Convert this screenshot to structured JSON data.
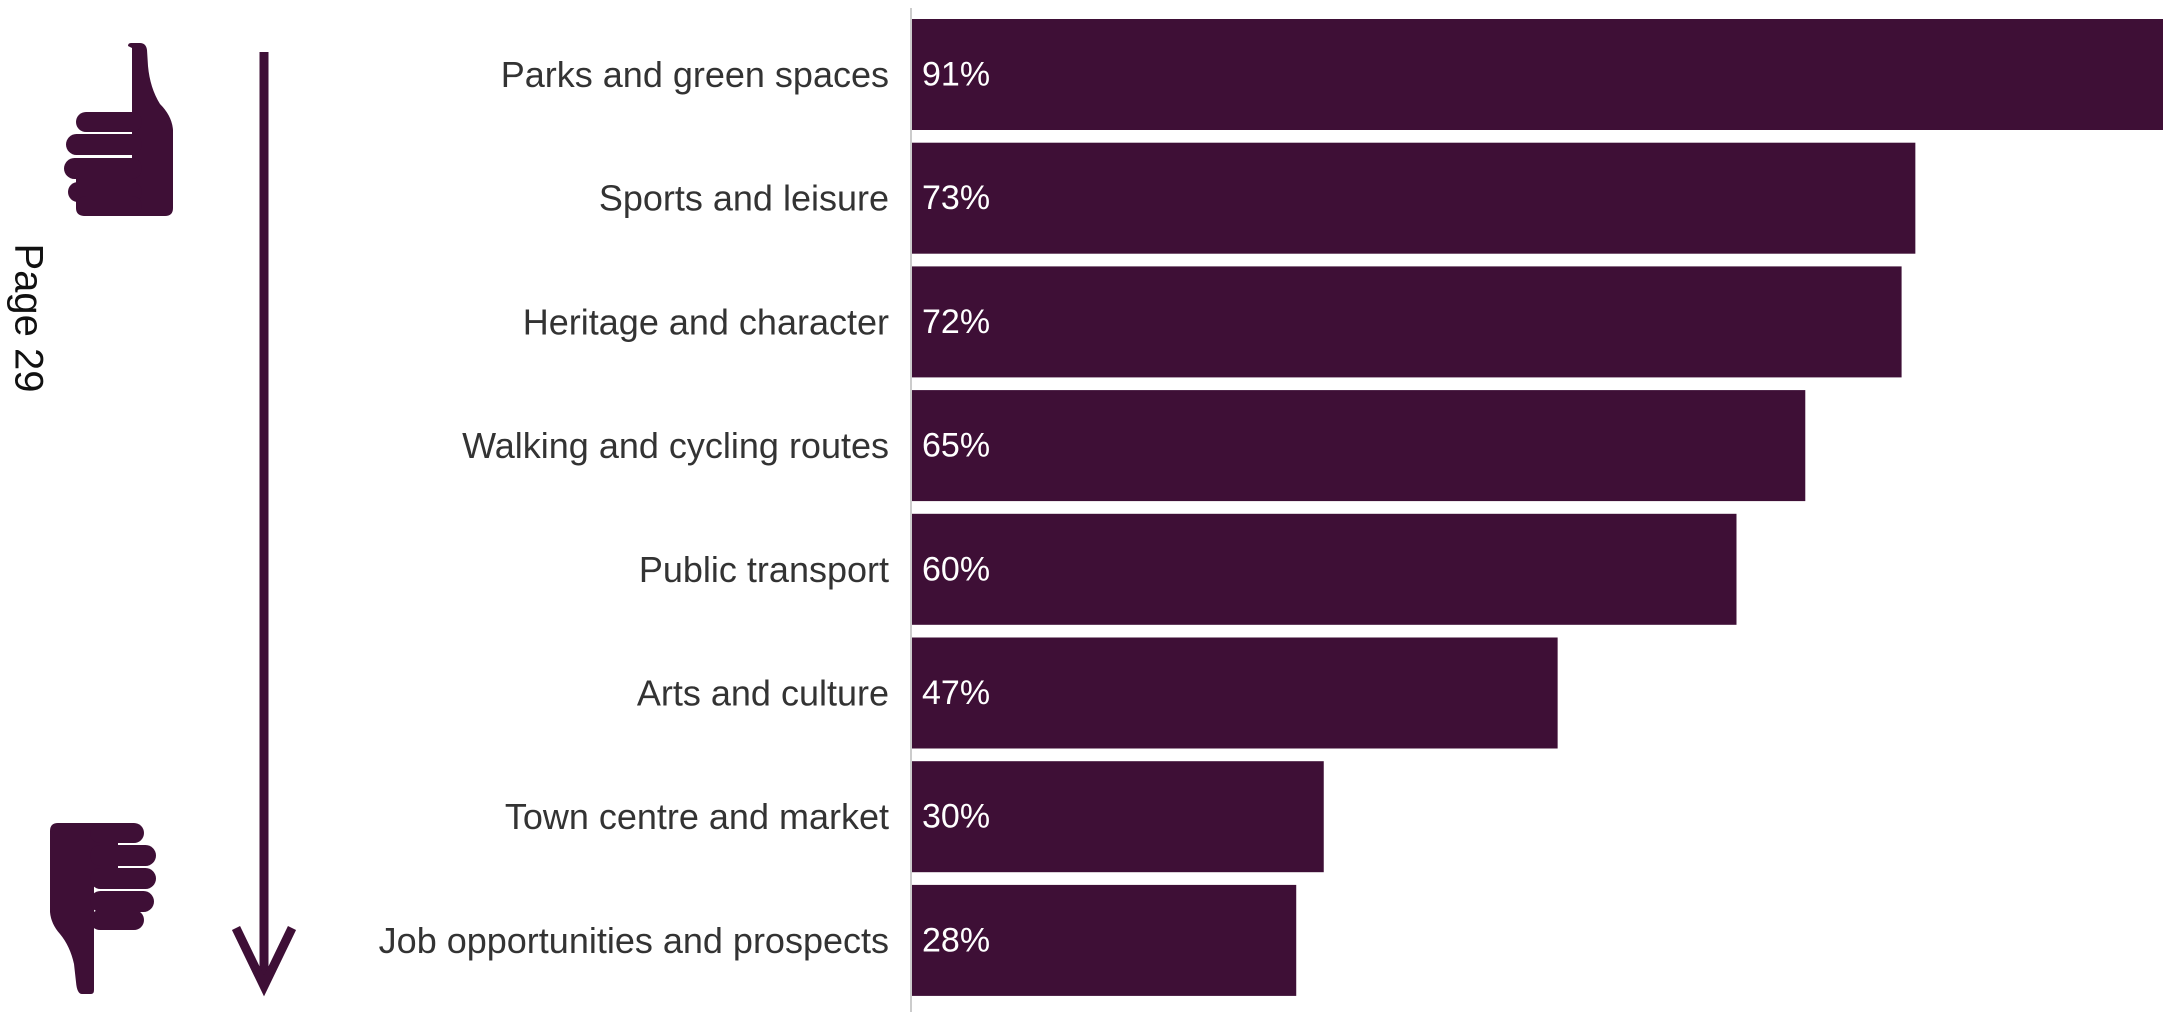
{
  "page_label": "Page 29",
  "colors": {
    "bar": "#3e0f36",
    "axis": "#cccccc",
    "category_text": "#333333",
    "value_text": "#ffffff",
    "icon": "#3e0f36"
  },
  "icons": {
    "top": "thumbs-up-icon",
    "bottom": "thumbs-down-icon",
    "arrow": "arrow-down-icon"
  },
  "chart_data": {
    "type": "bar",
    "orientation": "horizontal",
    "categories": [
      "Parks and green spaces",
      "Sports and leisure",
      "Heritage and character",
      "Walking and cycling routes",
      "Public transport",
      "Arts and culture",
      "Town centre and market",
      "Job opportunities and prospects"
    ],
    "values": [
      91,
      73,
      72,
      65,
      60,
      47,
      30,
      28
    ],
    "value_labels": [
      "91%",
      "73%",
      "72%",
      "65%",
      "60%",
      "47%",
      "30%",
      "28%"
    ],
    "unit": "%",
    "xlim": [
      0,
      91
    ],
    "title": "",
    "xlabel": "",
    "ylabel": "",
    "grid": false,
    "legend": "none"
  }
}
